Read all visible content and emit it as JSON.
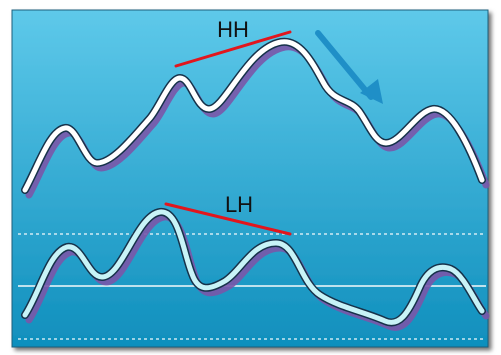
{
  "annotations": {
    "top_label": "HH",
    "bottom_label": "LH"
  },
  "colors": {
    "background_top": "#5ec9ea",
    "background_bottom": "#0f8fbd",
    "price_line": "#ffffff",
    "oscillator_line": "#c8f3f7",
    "shadow": "#7a56a8",
    "trend_line": "#e2161d",
    "arrow": "#1f8fc7",
    "grid_line": "#ffffff"
  },
  "icons": {
    "down_arrow": "arrow-down-right-icon"
  }
}
